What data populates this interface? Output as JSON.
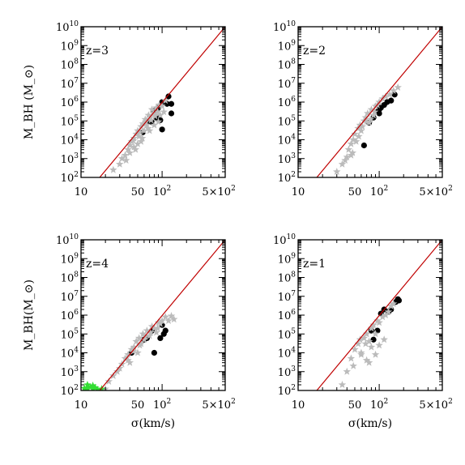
{
  "chart_data": [
    {
      "type": "scatter",
      "panel_label": "z=3",
      "xscale": "log",
      "yscale": "log",
      "xlim": [
        10,
        600
      ],
      "ylim": [
        100,
        10000000000
      ],
      "xlabel": "",
      "ylabel": "M_BH (M_⊙)",
      "relation_line": {
        "x": [
          17,
          600
        ],
        "y": [
          100,
          10000000000
        ],
        "color": "#c00000"
      },
      "series": [
        {
          "color": "#000000",
          "marker": "circle",
          "points": [
            [
              58,
              25000
            ],
            [
              70,
              90000
            ],
            [
              75,
              85000
            ],
            [
              80,
              350000
            ],
            [
              85,
              150000
            ],
            [
              90,
              500000
            ],
            [
              95,
              110000
            ],
            [
              100,
              1000000
            ],
            [
              100,
              35000
            ],
            [
              115,
              800000
            ],
            [
              120,
              2000000
            ],
            [
              130,
              800000
            ],
            [
              130,
              250000
            ]
          ]
        },
        {
          "color": "#bbbbbb",
          "marker": "star",
          "points": [
            [
              25,
              250
            ],
            [
              30,
              500
            ],
            [
              32,
              1000
            ],
            [
              35,
              1500
            ],
            [
              38,
              3000
            ],
            [
              40,
              5000
            ],
            [
              42,
              8000
            ],
            [
              45,
              12000
            ],
            [
              45,
              4000
            ],
            [
              48,
              20000
            ],
            [
              50,
              30000
            ],
            [
              50,
              6000
            ],
            [
              52,
              15000
            ],
            [
              55,
              50000
            ],
            [
              55,
              8000
            ],
            [
              58,
              70000
            ],
            [
              60,
              30000
            ],
            [
              62,
              120000
            ],
            [
              65,
              60000
            ],
            [
              68,
              200000
            ],
            [
              70,
              30000
            ],
            [
              72,
              150000
            ],
            [
              75,
              400000
            ],
            [
              78,
              250000
            ],
            [
              80,
              60000
            ],
            [
              85,
              500000
            ],
            [
              88,
              300000
            ],
            [
              92,
              700000
            ],
            [
              95,
              200000
            ],
            [
              100,
              600000
            ],
            [
              105,
              300000
            ],
            [
              110,
              1200000
            ],
            [
              40,
              2000
            ],
            [
              36,
              800
            ],
            [
              44,
              9000
            ],
            [
              47,
              3000
            ],
            [
              53,
              25000
            ],
            [
              57,
              12000
            ],
            [
              63,
              90000
            ],
            [
              67,
              40000
            ],
            [
              73,
              110000
            ],
            [
              82,
              180000
            ],
            [
              90,
              90000
            ]
          ]
        }
      ]
    },
    {
      "type": "scatter",
      "panel_label": "z=2",
      "xscale": "log",
      "yscale": "log",
      "xlim": [
        10,
        600
      ],
      "ylim": [
        100,
        10000000000
      ],
      "xlabel": "",
      "ylabel": "",
      "relation_line": {
        "x": [
          17,
          600
        ],
        "y": [
          100,
          10000000000
        ],
        "color": "#c00000"
      },
      "series": [
        {
          "color": "#000000",
          "marker": "circle",
          "points": [
            [
              65,
              5000
            ],
            [
              75,
              80000
            ],
            [
              85,
              150000
            ],
            [
              95,
              300000
            ],
            [
              100,
              400000
            ],
            [
              100,
              250000
            ],
            [
              105,
              500000
            ],
            [
              115,
              700000
            ],
            [
              125,
              1000000
            ],
            [
              140,
              1200000
            ],
            [
              155,
              2500000
            ]
          ]
        },
        {
          "color": "#bbbbbb",
          "marker": "star",
          "points": [
            [
              30,
              200
            ],
            [
              35,
              500
            ],
            [
              40,
              1200
            ],
            [
              42,
              3000
            ],
            [
              45,
              6000
            ],
            [
              48,
              10000
            ],
            [
              50,
              20000
            ],
            [
              55,
              40000
            ],
            [
              58,
              60000
            ],
            [
              60,
              30000
            ],
            [
              65,
              100000
            ],
            [
              68,
              150000
            ],
            [
              72,
              250000
            ],
            [
              75,
              80000
            ],
            [
              80,
              400000
            ],
            [
              85,
              200000
            ],
            [
              90,
              600000
            ],
            [
              95,
              700000
            ],
            [
              100,
              1000000
            ],
            [
              110,
              1500000
            ],
            [
              120,
              2000000
            ],
            [
              135,
              2500000
            ],
            [
              150,
              4000000
            ],
            [
              170,
              6000000
            ],
            [
              47,
              2000
            ],
            [
              52,
              8000
            ],
            [
              56,
              15000
            ],
            [
              62,
              50000
            ],
            [
              70,
              90000
            ],
            [
              78,
              120000
            ],
            [
              88,
              300000
            ],
            [
              45,
              1500
            ],
            [
              38,
              800
            ]
          ]
        }
      ]
    },
    {
      "type": "scatter",
      "panel_label": "z=4",
      "xscale": "log",
      "yscale": "log",
      "xlim": [
        10,
        600
      ],
      "ylim": [
        100,
        10000000000
      ],
      "xlabel": "σ(km/s)",
      "ylabel": "M_BH(M_⊙)",
      "relation_line": {
        "x": [
          17,
          600
        ],
        "y": [
          100,
          10000000000
        ],
        "color": "#c00000"
      },
      "series": [
        {
          "color": "#000000",
          "marker": "circle",
          "points": [
            [
              42,
              10000
            ],
            [
              60,
              50000
            ],
            [
              65,
              60000
            ],
            [
              75,
              150000
            ],
            [
              80,
              10000
            ],
            [
              95,
              60000
            ],
            [
              100,
              300000
            ],
            [
              105,
              100000
            ],
            [
              110,
              150000
            ]
          ]
        },
        {
          "color": "#bbbbbb",
          "marker": "star",
          "points": [
            [
              20,
              120
            ],
            [
              22,
              300
            ],
            [
              25,
              600
            ],
            [
              28,
              1000
            ],
            [
              30,
              1500
            ],
            [
              32,
              2500
            ],
            [
              35,
              5000
            ],
            [
              38,
              8000
            ],
            [
              40,
              3000
            ],
            [
              42,
              15000
            ],
            [
              45,
              20000
            ],
            [
              48,
              40000
            ],
            [
              50,
              10000
            ],
            [
              52,
              60000
            ],
            [
              55,
              30000
            ],
            [
              58,
              100000
            ],
            [
              60,
              50000
            ],
            [
              65,
              150000
            ],
            [
              70,
              80000
            ],
            [
              75,
              250000
            ],
            [
              80,
              200000
            ],
            [
              85,
              120000
            ],
            [
              90,
              400000
            ],
            [
              95,
              350000
            ],
            [
              100,
              500000
            ],
            [
              110,
              800000
            ],
            [
              120,
              500000
            ],
            [
              130,
              900000
            ],
            [
              140,
              600000
            ],
            [
              38,
              4000
            ],
            [
              44,
              12000
            ],
            [
              53,
              25000
            ],
            [
              62,
              70000
            ],
            [
              72,
              120000
            ],
            [
              88,
              200000
            ]
          ]
        },
        {
          "color": "#33dd33",
          "marker": "star",
          "points": [
            [
              11,
              130
            ],
            [
              12,
              200
            ],
            [
              12,
              130
            ],
            [
              13,
              150
            ],
            [
              14,
              120
            ],
            [
              15,
              140
            ],
            [
              16,
              110
            ],
            [
              18,
              120
            ],
            [
              14,
              180
            ]
          ]
        }
      ]
    },
    {
      "type": "scatter",
      "panel_label": "z=1",
      "xscale": "log",
      "yscale": "log",
      "xlim": [
        10,
        600
      ],
      "ylim": [
        100,
        10000000000
      ],
      "xlabel": "σ(km/s)",
      "ylabel": "",
      "relation_line": {
        "x": [
          17,
          600
        ],
        "y": [
          100,
          10000000000
        ],
        "color": "#c00000"
      },
      "series": [
        {
          "color": "#000000",
          "marker": "circle",
          "points": [
            [
              80,
              150000
            ],
            [
              85,
              50000
            ],
            [
              95,
              150000
            ],
            [
              105,
              1200000
            ],
            [
              115,
              2000000
            ],
            [
              130,
              1500000
            ],
            [
              140,
              2000000
            ],
            [
              160,
              5000000
            ],
            [
              170,
              7000000
            ],
            [
              175,
              6000000
            ]
          ]
        },
        {
          "color": "#bbbbbb",
          "marker": "star",
          "points": [
            [
              35,
              200
            ],
            [
              40,
              1000
            ],
            [
              45,
              5000
            ],
            [
              50,
              15000
            ],
            [
              55,
              30000
            ],
            [
              60,
              10000
            ],
            [
              65,
              60000
            ],
            [
              70,
              100000
            ],
            [
              75,
              40000
            ],
            [
              80,
              200000
            ],
            [
              85,
              300000
            ],
            [
              90,
              100000
            ],
            [
              95,
              500000
            ],
            [
              100,
              400000
            ],
            [
              110,
              800000
            ],
            [
              120,
              1000000
            ],
            [
              130,
              1500000
            ],
            [
              60,
              8000
            ],
            [
              70,
              4000
            ],
            [
              75,
              3000
            ],
            [
              80,
              20000
            ],
            [
              48,
              2000
            ],
            [
              58,
              50000
            ],
            [
              68,
              30000
            ],
            [
              140,
              3000000
            ],
            [
              150,
              4000000
            ],
            [
              90,
              8000
            ],
            [
              100,
              25000
            ],
            [
              115,
              50000
            ]
          ]
        }
      ]
    }
  ],
  "tick_labels": {
    "x": [
      {
        "value": 10,
        "base": "10",
        "exp": ""
      },
      {
        "value": 50,
        "base": "50",
        "exp": ""
      },
      {
        "value": 100,
        "base": "10",
        "exp": "2"
      },
      {
        "value": 500,
        "base": "5×10",
        "exp": "2"
      }
    ],
    "y": [
      {
        "value": 100,
        "base": "10",
        "exp": "2"
      },
      {
        "value": 1000,
        "base": "10",
        "exp": "3"
      },
      {
        "value": 10000,
        "base": "10",
        "exp": "4"
      },
      {
        "value": 100000,
        "base": "10",
        "exp": "5"
      },
      {
        "value": 1000000,
        "base": "10",
        "exp": "6"
      },
      {
        "value": 10000000,
        "base": "10",
        "exp": "7"
      },
      {
        "value": 100000000,
        "base": "10",
        "exp": "8"
      },
      {
        "value": 1000000000,
        "base": "10",
        "exp": "9"
      },
      {
        "value": 10000000000,
        "base": "10",
        "exp": "10"
      }
    ]
  }
}
